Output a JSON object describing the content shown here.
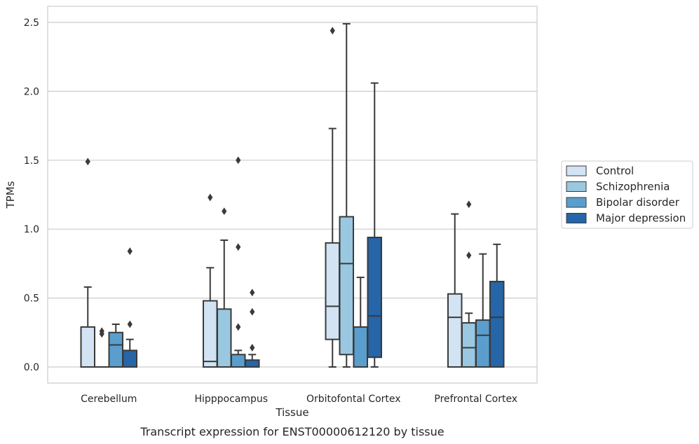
{
  "chart_data": {
    "type": "box",
    "xlabel": "Tissue",
    "ylabel": "TPMs",
    "caption": "Transcript expression for ENST00000612120 by tissue",
    "categories": [
      "Cerebellum",
      "Hipppocampus",
      "Orbitofontal Cortex",
      "Prefrontal Cortex"
    ],
    "ylim": [
      -0.12,
      2.62
    ],
    "yticks": [
      "0.0",
      "0.5",
      "1.0",
      "1.5",
      "2.0",
      "2.5"
    ],
    "ytick_values": [
      0.0,
      0.5,
      1.0,
      1.5,
      2.0,
      2.5
    ],
    "grid": "horizontal",
    "legend_placement": "right",
    "series": [
      {
        "name": "Control",
        "color": "#d2e3f3",
        "boxes": [
          {
            "whisker_low": 0.0,
            "q1": 0.0,
            "median": 0.0,
            "q3": 0.29,
            "whisker_high": 0.58,
            "outliers": [
              1.49
            ]
          },
          {
            "whisker_low": 0.0,
            "q1": 0.0,
            "median": 0.04,
            "q3": 0.48,
            "whisker_high": 0.72,
            "outliers": [
              1.23
            ]
          },
          {
            "whisker_low": 0.0,
            "q1": 0.2,
            "median": 0.44,
            "q3": 0.9,
            "whisker_high": 1.73,
            "outliers": [
              2.44
            ]
          },
          {
            "whisker_low": 0.0,
            "q1": 0.0,
            "median": 0.36,
            "q3": 0.53,
            "whisker_high": 1.11,
            "outliers": []
          }
        ]
      },
      {
        "name": "Schizophrenia",
        "color": "#9ac8e0",
        "boxes": [
          {
            "whisker_low": 0.0,
            "q1": 0.0,
            "median": 0.0,
            "q3": 0.0,
            "whisker_high": 0.0,
            "outliers": [
              0.24,
              0.26
            ]
          },
          {
            "whisker_low": 0.0,
            "q1": 0.0,
            "median": 0.0,
            "q3": 0.42,
            "whisker_high": 0.92,
            "outliers": [
              1.13
            ]
          },
          {
            "whisker_low": 0.0,
            "q1": 0.09,
            "median": 0.75,
            "q3": 1.09,
            "whisker_high": 2.49,
            "outliers": []
          },
          {
            "whisker_low": 0.0,
            "q1": 0.0,
            "median": 0.14,
            "q3": 0.32,
            "whisker_high": 0.39,
            "outliers": [
              0.81,
              1.18
            ]
          }
        ]
      },
      {
        "name": "Bipolar disorder",
        "color": "#5a9ecd",
        "boxes": [
          {
            "whisker_low": 0.0,
            "q1": 0.0,
            "median": 0.16,
            "q3": 0.25,
            "whisker_high": 0.31,
            "outliers": []
          },
          {
            "whisker_low": 0.0,
            "q1": 0.0,
            "median": 0.0,
            "q3": 0.09,
            "whisker_high": 0.12,
            "outliers": [
              0.29,
              0.87,
              1.5
            ]
          },
          {
            "whisker_low": 0.0,
            "q1": 0.0,
            "median": 0.0,
            "q3": 0.29,
            "whisker_high": 0.65,
            "outliers": []
          },
          {
            "whisker_low": 0.0,
            "q1": 0.0,
            "median": 0.23,
            "q3": 0.34,
            "whisker_high": 0.82,
            "outliers": []
          }
        ]
      },
      {
        "name": "Major depression",
        "color": "#2565a8",
        "boxes": [
          {
            "whisker_low": 0.0,
            "q1": 0.0,
            "median": 0.0,
            "q3": 0.12,
            "whisker_high": 0.2,
            "outliers": [
              0.31,
              0.84
            ]
          },
          {
            "whisker_low": 0.0,
            "q1": 0.0,
            "median": 0.0,
            "q3": 0.05,
            "whisker_high": 0.09,
            "outliers": [
              0.14,
              0.4,
              0.54
            ]
          },
          {
            "whisker_low": 0.0,
            "q1": 0.07,
            "median": 0.37,
            "q3": 0.94,
            "whisker_high": 2.06,
            "outliers": []
          },
          {
            "whisker_low": 0.0,
            "q1": 0.0,
            "median": 0.36,
            "q3": 0.62,
            "whisker_high": 0.89,
            "outliers": []
          }
        ]
      }
    ]
  }
}
